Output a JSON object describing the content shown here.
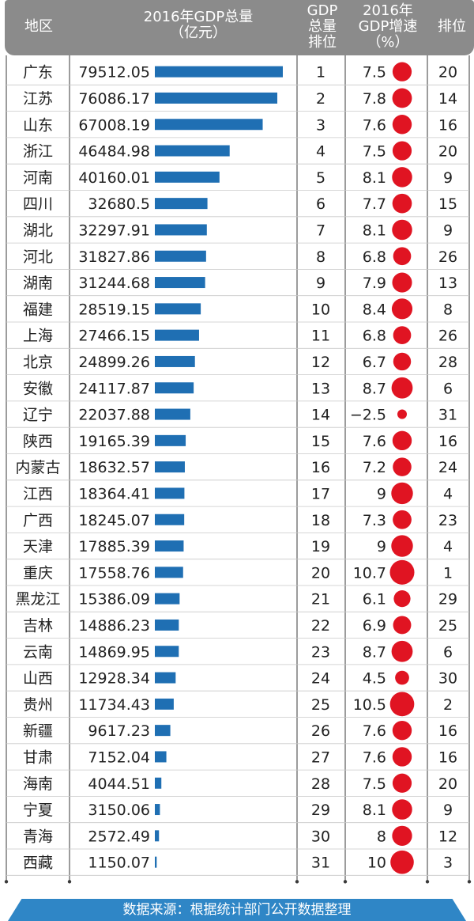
{
  "header": {
    "col_region": "地区",
    "col_gdp_line1": "2016年GDP总量",
    "col_gdp_line2": "（亿元）",
    "col_rank_line1": "GDP",
    "col_rank_line2": "总量",
    "col_rank_line3": "排位",
    "col_growth_line1": "2016年",
    "col_growth_line2": "GDP增速",
    "col_growth_line3": "（%）",
    "col_growth_rank": "排位"
  },
  "footer": {
    "source": "数据来源：根据统计部门公开数据整理"
  },
  "colors": {
    "header_bg": "#8b8b8b",
    "bar": "#1f6fb3",
    "dot": "#e01422",
    "footer_bg": "#2f86c6",
    "row_line": "#c8c8c8"
  },
  "chart_data": {
    "type": "table",
    "columns": [
      "地区",
      "2016年GDP总量（亿元）",
      "GDP总量排位",
      "2016年GDP增速（%）",
      "排位"
    ],
    "rows": [
      {
        "region": "广东",
        "gdp": "79512.05",
        "gdp_rank": "1",
        "growth": "7.5",
        "growth_rank": "20"
      },
      {
        "region": "江苏",
        "gdp": "76086.17",
        "gdp_rank": "2",
        "growth": "7.8",
        "growth_rank": "14"
      },
      {
        "region": "山东",
        "gdp": "67008.19",
        "gdp_rank": "3",
        "growth": "7.6",
        "growth_rank": "16"
      },
      {
        "region": "浙江",
        "gdp": "46484.98",
        "gdp_rank": "4",
        "growth": "7.5",
        "growth_rank": "20"
      },
      {
        "region": "河南",
        "gdp": "40160.01",
        "gdp_rank": "5",
        "growth": "8.1",
        "growth_rank": "9"
      },
      {
        "region": "四川",
        "gdp": "32680.5",
        "gdp_rank": "6",
        "growth": "7.7",
        "growth_rank": "15"
      },
      {
        "region": "湖北",
        "gdp": "32297.91",
        "gdp_rank": "7",
        "growth": "8.1",
        "growth_rank": "9"
      },
      {
        "region": "河北",
        "gdp": "31827.86",
        "gdp_rank": "8",
        "growth": "6.8",
        "growth_rank": "26"
      },
      {
        "region": "湖南",
        "gdp": "31244.68",
        "gdp_rank": "9",
        "growth": "7.9",
        "growth_rank": "13"
      },
      {
        "region": "福建",
        "gdp": "28519.15",
        "gdp_rank": "10",
        "growth": "8.4",
        "growth_rank": "8"
      },
      {
        "region": "上海",
        "gdp": "27466.15",
        "gdp_rank": "11",
        "growth": "6.8",
        "growth_rank": "26"
      },
      {
        "region": "北京",
        "gdp": "24899.26",
        "gdp_rank": "12",
        "growth": "6.7",
        "growth_rank": "28"
      },
      {
        "region": "安徽",
        "gdp": "24117.87",
        "gdp_rank": "13",
        "growth": "8.7",
        "growth_rank": "6"
      },
      {
        "region": "辽宁",
        "gdp": "22037.88",
        "gdp_rank": "14",
        "growth": "−2.5",
        "growth_rank": "31"
      },
      {
        "region": "陕西",
        "gdp": "19165.39",
        "gdp_rank": "15",
        "growth": "7.6",
        "growth_rank": "16"
      },
      {
        "region": "内蒙古",
        "gdp": "18632.57",
        "gdp_rank": "16",
        "growth": "7.2",
        "growth_rank": "24"
      },
      {
        "region": "江西",
        "gdp": "18364.41",
        "gdp_rank": "17",
        "growth": "9",
        "growth_rank": "4"
      },
      {
        "region": "广西",
        "gdp": "18245.07",
        "gdp_rank": "18",
        "growth": "7.3",
        "growth_rank": "23"
      },
      {
        "region": "天津",
        "gdp": "17885.39",
        "gdp_rank": "19",
        "growth": "9",
        "growth_rank": "4"
      },
      {
        "region": "重庆",
        "gdp": "17558.76",
        "gdp_rank": "20",
        "growth": "10.7",
        "growth_rank": "1"
      },
      {
        "region": "黑龙江",
        "gdp": "15386.09",
        "gdp_rank": "21",
        "growth": "6.1",
        "growth_rank": "29"
      },
      {
        "region": "吉林",
        "gdp": "14886.23",
        "gdp_rank": "22",
        "growth": "6.9",
        "growth_rank": "25"
      },
      {
        "region": "云南",
        "gdp": "14869.95",
        "gdp_rank": "23",
        "growth": "8.7",
        "growth_rank": "6"
      },
      {
        "region": "山西",
        "gdp": "12928.34",
        "gdp_rank": "24",
        "growth": "4.5",
        "growth_rank": "30"
      },
      {
        "region": "贵州",
        "gdp": "11734.43",
        "gdp_rank": "25",
        "growth": "10.5",
        "growth_rank": "2"
      },
      {
        "region": "新疆",
        "gdp": "9617.23",
        "gdp_rank": "26",
        "growth": "7.6",
        "growth_rank": "16"
      },
      {
        "region": "甘肃",
        "gdp": "7152.04",
        "gdp_rank": "27",
        "growth": "7.6",
        "growth_rank": "16"
      },
      {
        "region": "海南",
        "gdp": "4044.51",
        "gdp_rank": "28",
        "growth": "7.5",
        "growth_rank": "20"
      },
      {
        "region": "宁夏",
        "gdp": "3150.06",
        "gdp_rank": "29",
        "growth": "8.1",
        "growth_rank": "9"
      },
      {
        "region": "青海",
        "gdp": "2572.49",
        "gdp_rank": "30",
        "growth": "8",
        "growth_rank": "12"
      },
      {
        "region": "西藏",
        "gdp": "1150.07",
        "gdp_rank": "31",
        "growth": "10",
        "growth_rank": "3"
      }
    ]
  }
}
